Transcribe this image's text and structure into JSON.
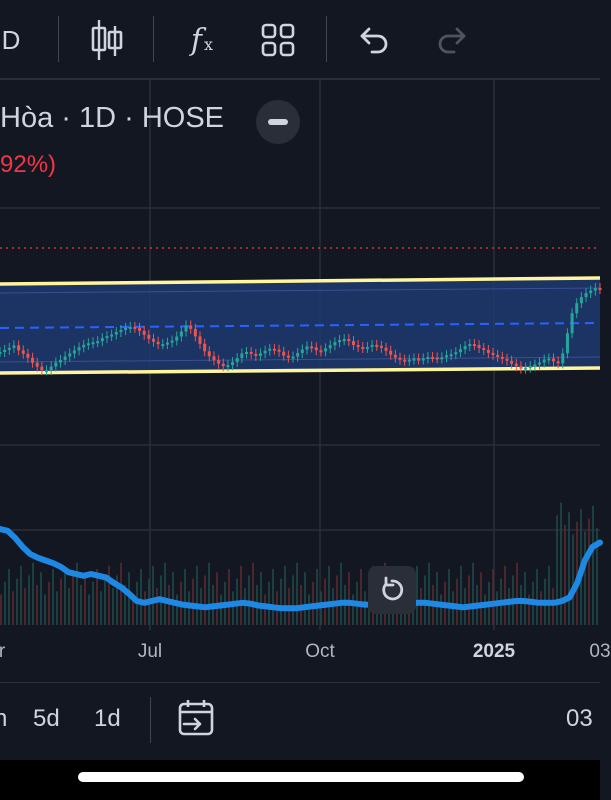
{
  "toolbar": {
    "interval_label": "D",
    "icons": [
      "candlestick-icon",
      "function-icon",
      "layout-grid-icon",
      "undo-icon",
      "redo-icon"
    ],
    "fx_symbol": "f",
    "fx_sub": "x"
  },
  "legend": {
    "title": "Hòa · 1D · HOSE",
    "change": "92%)",
    "change_color": "#f23645"
  },
  "colors": {
    "background": "#131722",
    "grid": "#2a2e39",
    "channel_line": "#fff59d",
    "channel_fill": "#1e3a6e",
    "midline": "#2962ff",
    "up": "#26a69a",
    "down": "#ef5350",
    "volume_ma": "#1e88e5",
    "price_line": "#f23645"
  },
  "chart_data": {
    "type": "candlestick",
    "x_labels": [
      "r",
      "Jul",
      "Oct",
      "2025",
      "03"
    ],
    "close_series": [
      0.42,
      0.46,
      0.5,
      0.55,
      0.45,
      0.38,
      0.3,
      0.2,
      0.12,
      0.05,
      0.05,
      0.12,
      0.2,
      0.25,
      0.32,
      0.38,
      0.44,
      0.5,
      0.55,
      0.58,
      0.6,
      0.62,
      0.68,
      0.72,
      0.75,
      0.8,
      0.84,
      0.88,
      0.9,
      0.88,
      0.82,
      0.74,
      0.66,
      0.6,
      0.55,
      0.55,
      0.58,
      0.62,
      0.7,
      0.8,
      0.92,
      0.85,
      0.7,
      0.55,
      0.4,
      0.3,
      0.22,
      0.15,
      0.1,
      0.12,
      0.18,
      0.26,
      0.35,
      0.38,
      0.34,
      0.3,
      0.35,
      0.4,
      0.44,
      0.42,
      0.38,
      0.3,
      0.26,
      0.28,
      0.35,
      0.42,
      0.48,
      0.46,
      0.4,
      0.38,
      0.44,
      0.5,
      0.56,
      0.6,
      0.62,
      0.58,
      0.5,
      0.46,
      0.44,
      0.46,
      0.5,
      0.48,
      0.44,
      0.38,
      0.3,
      0.24,
      0.2,
      0.18,
      0.2,
      0.22,
      0.2,
      0.22,
      0.25,
      0.24,
      0.22,
      0.24,
      0.28,
      0.3,
      0.34,
      0.4,
      0.46,
      0.5,
      0.48,
      0.42,
      0.38,
      0.32,
      0.28,
      0.24,
      0.2,
      0.16,
      0.1,
      0.05,
      0.0,
      0.02,
      0.05,
      0.08,
      0.12,
      0.18,
      0.2,
      0.14,
      0.1,
      0.3,
      0.7,
      1.1,
      1.3,
      1.42,
      1.5,
      1.55,
      1.6,
      1.58
    ],
    "volume_ma": [
      0.9,
      0.88,
      0.8,
      0.7,
      0.62,
      0.58,
      0.55,
      0.52,
      0.48,
      0.42,
      0.4,
      0.38,
      0.4,
      0.38,
      0.36,
      0.3,
      0.25,
      0.18,
      0.1,
      0.08,
      0.1,
      0.12,
      0.1,
      0.08,
      0.06,
      0.05,
      0.04,
      0.03,
      0.04,
      0.05,
      0.06,
      0.07,
      0.08,
      0.07,
      0.05,
      0.04,
      0.03,
      0.02,
      0.02,
      0.02,
      0.03,
      0.04,
      0.05,
      0.06,
      0.07,
      0.08,
      0.08,
      0.07,
      0.06,
      0.06,
      0.05,
      0.04,
      0.05,
      0.06,
      0.07,
      0.08,
      0.08,
      0.07,
      0.06,
      0.05,
      0.04,
      0.03,
      0.04,
      0.05,
      0.06,
      0.07,
      0.08,
      0.09,
      0.1,
      0.1,
      0.09,
      0.08,
      0.08,
      0.08,
      0.1,
      0.14,
      0.3,
      0.55,
      0.7,
      0.75
    ]
  },
  "bottom_bar": {
    "ranges": [
      "n",
      "5d",
      "1d"
    ],
    "date_label": "03"
  }
}
